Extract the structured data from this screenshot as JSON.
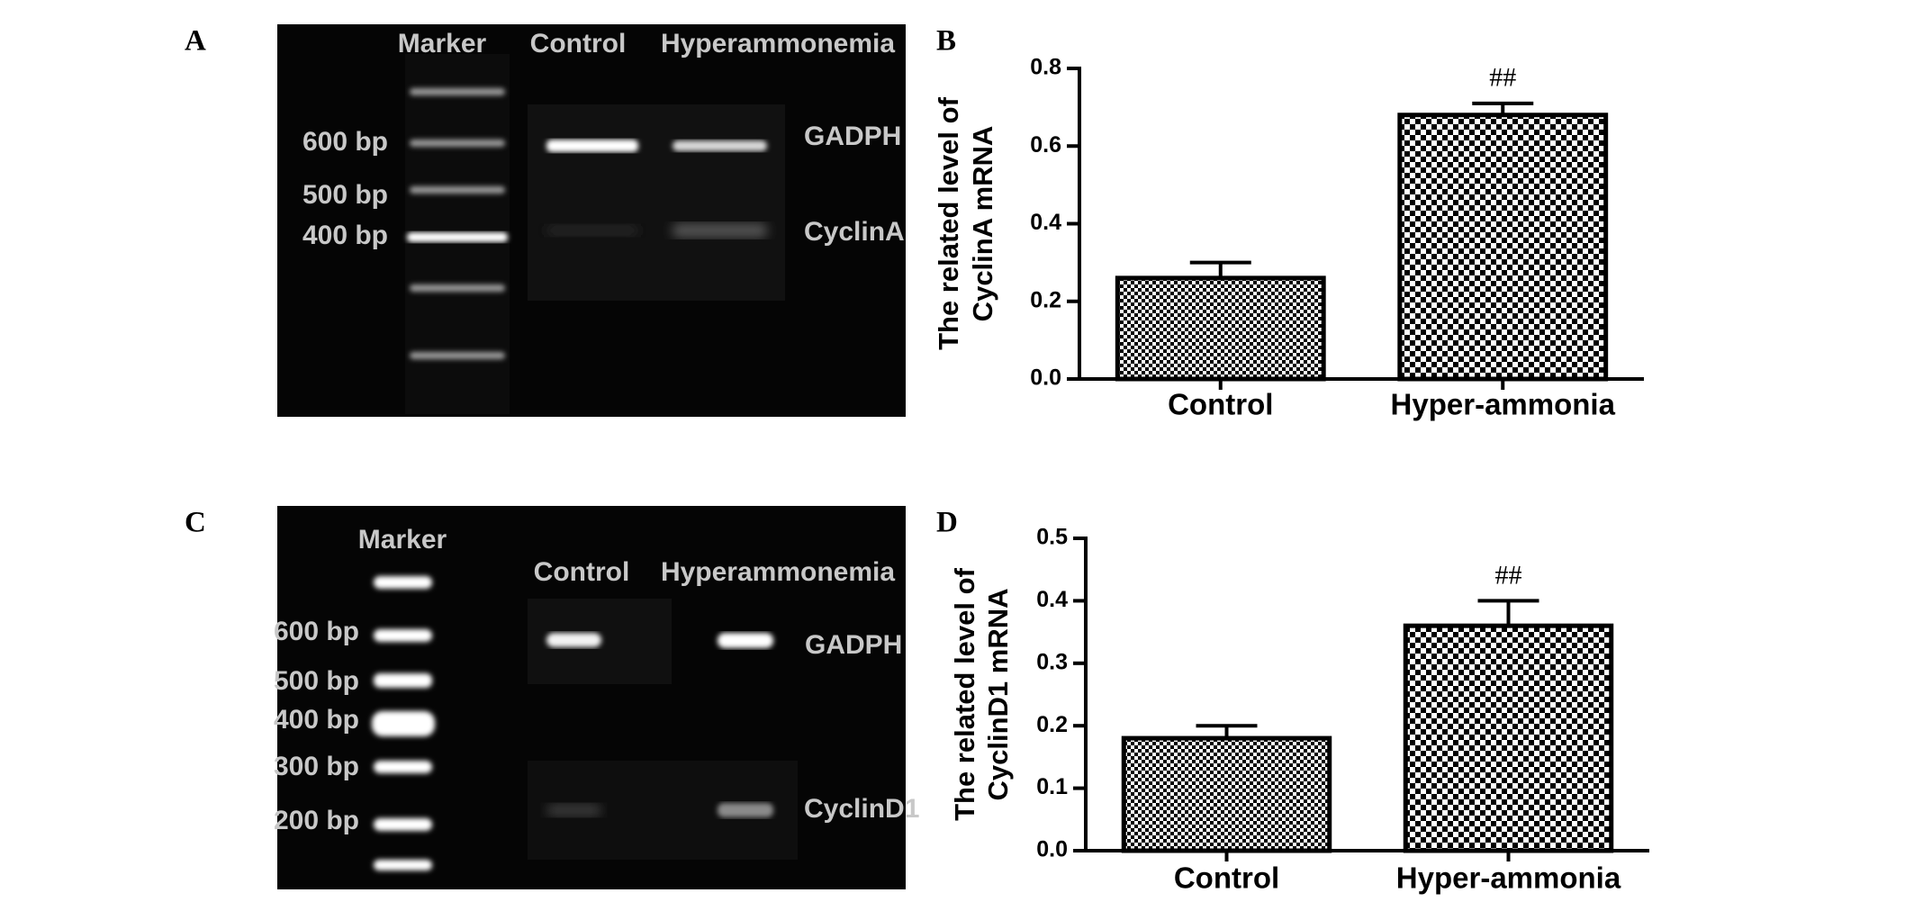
{
  "panel_labels": [
    "A",
    "B",
    "C",
    "D"
  ],
  "gels": [
    {
      "lanes": [
        "Marker",
        "Control",
        "Hyperammonemia"
      ],
      "ladder": [
        "600 bp",
        "500 bp",
        "400 bp"
      ],
      "genes": [
        "GADPH",
        "CyclinA"
      ]
    },
    {
      "lanes": [
        "Marker",
        "Control",
        "Hyperammonemia"
      ],
      "ladder": [
        "600 bp",
        "500 bp",
        "400 bp",
        "300 bp",
        "200 bp"
      ],
      "genes": [
        "GADPH",
        "CyclinD1"
      ]
    }
  ],
  "chart_data": [
    {
      "type": "bar",
      "ylabel": [
        "The related level of",
        "CyclinA mRNA"
      ],
      "categories": [
        "Control",
        "Hyper-ammonia"
      ],
      "values": [
        0.26,
        0.68
      ],
      "errors": [
        0.04,
        0.03
      ],
      "color": "#000000",
      "ylim": [
        0,
        0.8
      ],
      "yticks": [
        {
          "value": 0,
          "label": "0.0"
        },
        0.2,
        0.4,
        0.6,
        0.8
      ],
      "annotations": [
        {
          "text": "##",
          "category": "Hyper-ammonia"
        }
      ]
    },
    {
      "type": "bar",
      "ylabel": [
        "The related level of",
        "CyclinD1 mRNA"
      ],
      "categories": [
        "Control",
        "Hyper-ammonia"
      ],
      "values": [
        0.18,
        0.36
      ],
      "errors": [
        0.02,
        0.04
      ],
      "color": "#000000",
      "ylim": [
        0,
        0.5
      ],
      "yticks": [
        {
          "value": 0,
          "label": "0.0"
        },
        0.1,
        0.2,
        0.3,
        0.4,
        0.5
      ],
      "annotations": [
        {
          "text": "##",
          "category": "Hyper-ammonia"
        }
      ]
    }
  ]
}
